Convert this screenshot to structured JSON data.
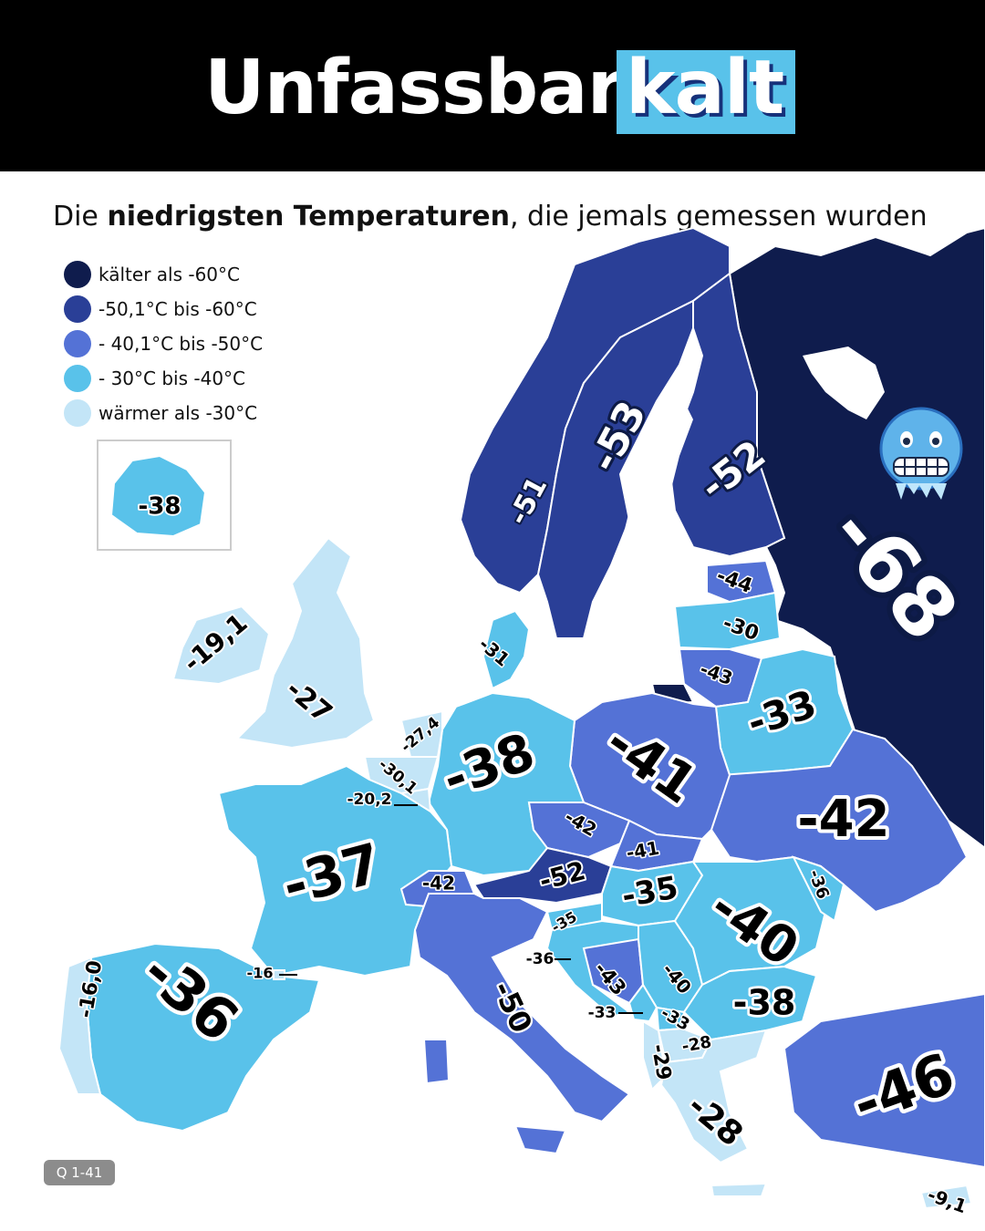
{
  "header": {
    "title_main": "Unfassbar",
    "title_accent": "kalt"
  },
  "subtitle": {
    "part1": "Die ",
    "bold": "niedrigsten Temperaturen",
    "part2": ", die jemals gemessen wurden"
  },
  "legend": [
    {
      "label": "kälter als -60°C",
      "color": "#0f1c4d"
    },
    {
      "label": "-50,1°C bis -60°C",
      "color": "#2a3f97"
    },
    {
      "label": "- 40,1°C bis -50°C",
      "color": "#5472d6"
    },
    {
      "label": "- 30°C bis -40°C",
      "color": "#59c2ea"
    },
    {
      "label": "wärmer als -30°C",
      "color": "#c3e5f7"
    }
  ],
  "regions": [
    {
      "name": "Russland",
      "value": "-68"
    },
    {
      "name": "Schweden",
      "value": "-53"
    },
    {
      "name": "Finnland",
      "value": "-52"
    },
    {
      "name": "Norwegen",
      "value": "-51"
    },
    {
      "name": "Estland",
      "value": "-44"
    },
    {
      "name": "Lettland",
      "value": "-30"
    },
    {
      "name": "Litauen",
      "value": "-43"
    },
    {
      "name": "Belarus",
      "value": "-33"
    },
    {
      "name": "Dänemark",
      "value": "-31"
    },
    {
      "name": "Irland",
      "value": "-19,1"
    },
    {
      "name": "Großbritannien",
      "value": "-27"
    },
    {
      "name": "Niederlande",
      "value": "-27,4"
    },
    {
      "name": "Belgien",
      "value": "-30,1"
    },
    {
      "name": "Luxemburg",
      "value": "-20,2"
    },
    {
      "name": "Deutschland",
      "value": "-38"
    },
    {
      "name": "Polen",
      "value": "-41"
    },
    {
      "name": "Ukraine",
      "value": "-42"
    },
    {
      "name": "Frankreich",
      "value": "-37"
    },
    {
      "name": "Tschechien",
      "value": "-42"
    },
    {
      "name": "Slowakei",
      "value": "-41"
    },
    {
      "name": "Österreich",
      "value": "-52"
    },
    {
      "name": "Schweiz",
      "value": "-42"
    },
    {
      "name": "Ungarn",
      "value": "-35"
    },
    {
      "name": "Moldau",
      "value": "-36"
    },
    {
      "name": "Rumänien",
      "value": "-40"
    },
    {
      "name": "Slowenien",
      "value": "-35"
    },
    {
      "name": "Kroatien",
      "value": "-36"
    },
    {
      "name": "Bosnien und Herzegowina",
      "value": "-43"
    },
    {
      "name": "Serbien",
      "value": "-40"
    },
    {
      "name": "Montenegro",
      "value": "-33"
    },
    {
      "name": "Kosovo",
      "value": "-33"
    },
    {
      "name": "Nordmazedonien",
      "value": "-28"
    },
    {
      "name": "Albanien",
      "value": "-29"
    },
    {
      "name": "Bulgarien",
      "value": "-38"
    },
    {
      "name": "Griechenland",
      "value": "-28"
    },
    {
      "name": "Türkei",
      "value": "-46"
    },
    {
      "name": "Zypern",
      "value": "-9,1"
    },
    {
      "name": "Italien",
      "value": "-50"
    },
    {
      "name": "Spanien",
      "value": "-36"
    },
    {
      "name": "Andorra",
      "value": "-16"
    },
    {
      "name": "Portugal",
      "value": "-16,0"
    },
    {
      "name": "Island",
      "value": "-38"
    }
  ],
  "emoji": {
    "icon": "cold-face-icon"
  },
  "badge": "Q 1-41"
}
